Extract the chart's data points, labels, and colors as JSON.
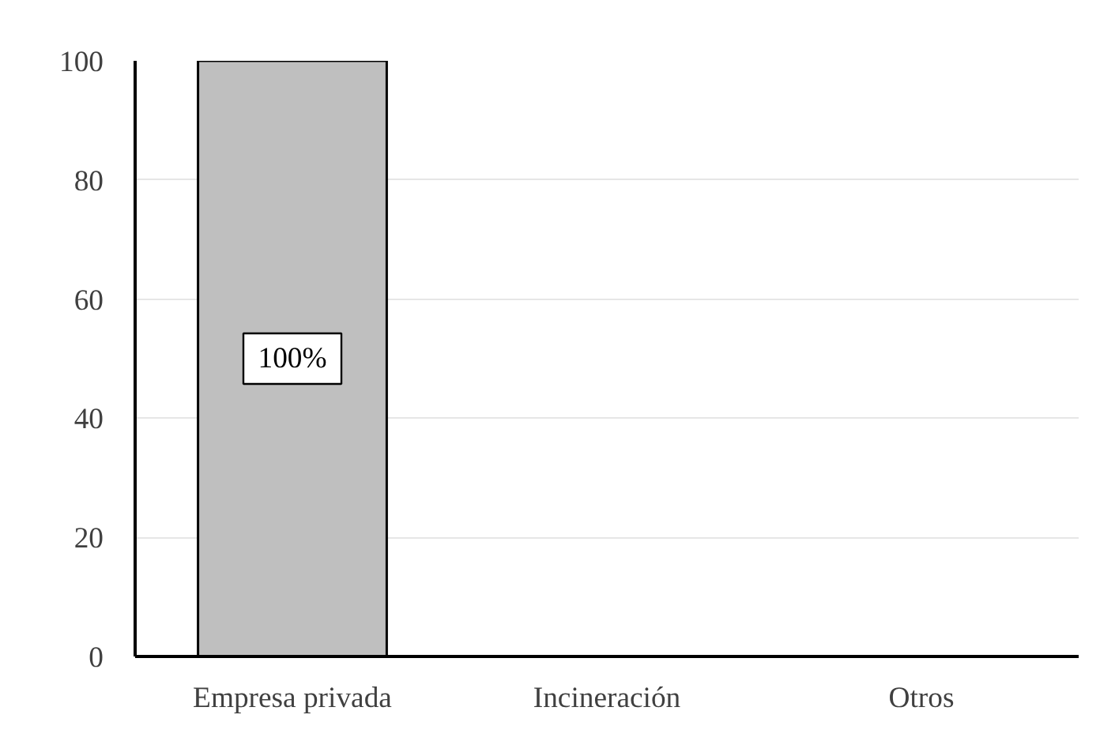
{
  "chart_data": {
    "type": "bar",
    "categories": [
      "Empresa privada",
      "Incineración",
      "Otros"
    ],
    "values": [
      100,
      0,
      0
    ],
    "color": "#bfbfbf",
    "value_labels": [
      "100%",
      null,
      null
    ],
    "ylim": [
      0,
      100
    ],
    "yticks": [
      0,
      20,
      40,
      60,
      80,
      100
    ],
    "grid": "y"
  }
}
